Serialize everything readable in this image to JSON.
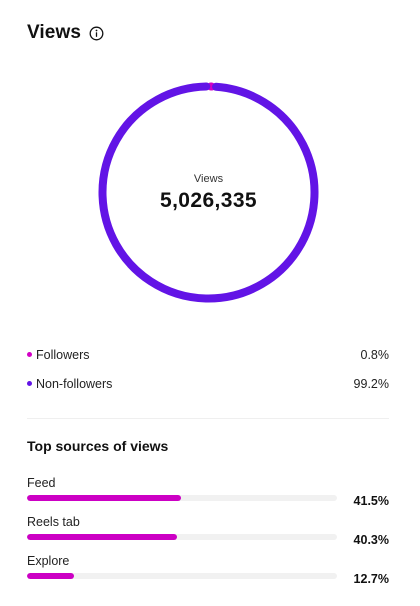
{
  "header": {
    "title": "Views",
    "info_icon": "info-circle-icon"
  },
  "donut": {
    "label": "Views",
    "total": "5,026,335",
    "segments": [
      {
        "name": "Followers",
        "percent": 0.8,
        "color": "#d300c5"
      },
      {
        "name": "Non-followers",
        "percent": 99.2,
        "color": "#6214e6"
      }
    ]
  },
  "audience": [
    {
      "label": "Followers",
      "value": "0.8%",
      "color": "#d300c5"
    },
    {
      "label": "Non-followers",
      "value": "99.2%",
      "color": "#6214e6"
    }
  ],
  "sources": {
    "title": "Top sources of views",
    "bar_color": "#cc00c4",
    "items": [
      {
        "label": "Feed",
        "value": "41.5%",
        "percent": 41.5
      },
      {
        "label": "Reels tab",
        "value": "40.3%",
        "percent": 40.3
      },
      {
        "label": "Explore",
        "value": "12.7%",
        "percent": 12.7
      }
    ]
  }
}
